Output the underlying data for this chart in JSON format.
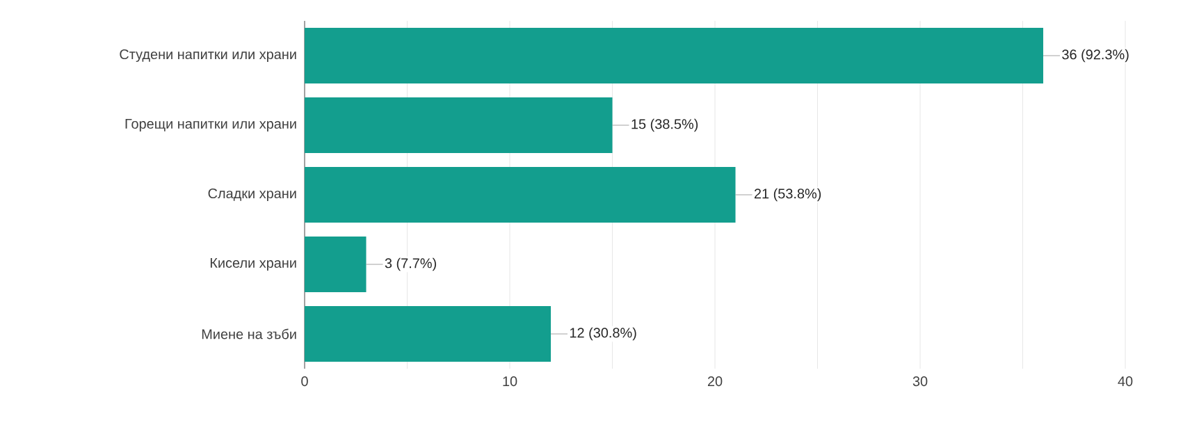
{
  "chart_data": {
    "type": "bar",
    "orientation": "horizontal",
    "categories": [
      "Студени напитки или храни",
      "Горещи напитки или храни",
      "Сладки храни",
      "Кисели храни",
      "Миене на зъби"
    ],
    "values": [
      36,
      15,
      21,
      3,
      12
    ],
    "value_labels": [
      "36 (92.3%)",
      "15 (38.5%)",
      "21 (53.8%)",
      "3 (7.7%)",
      "12 (30.8%)"
    ],
    "color": "#139e8e",
    "xlim": [
      0,
      40
    ],
    "xticks": [
      0,
      {
        "value": 5,
        "label": null
      },
      10,
      {
        "value": 15,
        "label": null
      },
      20,
      {
        "value": 25,
        "label": null
      },
      30,
      {
        "value": 35,
        "label": null
      },
      40
    ],
    "grid": "x"
  }
}
